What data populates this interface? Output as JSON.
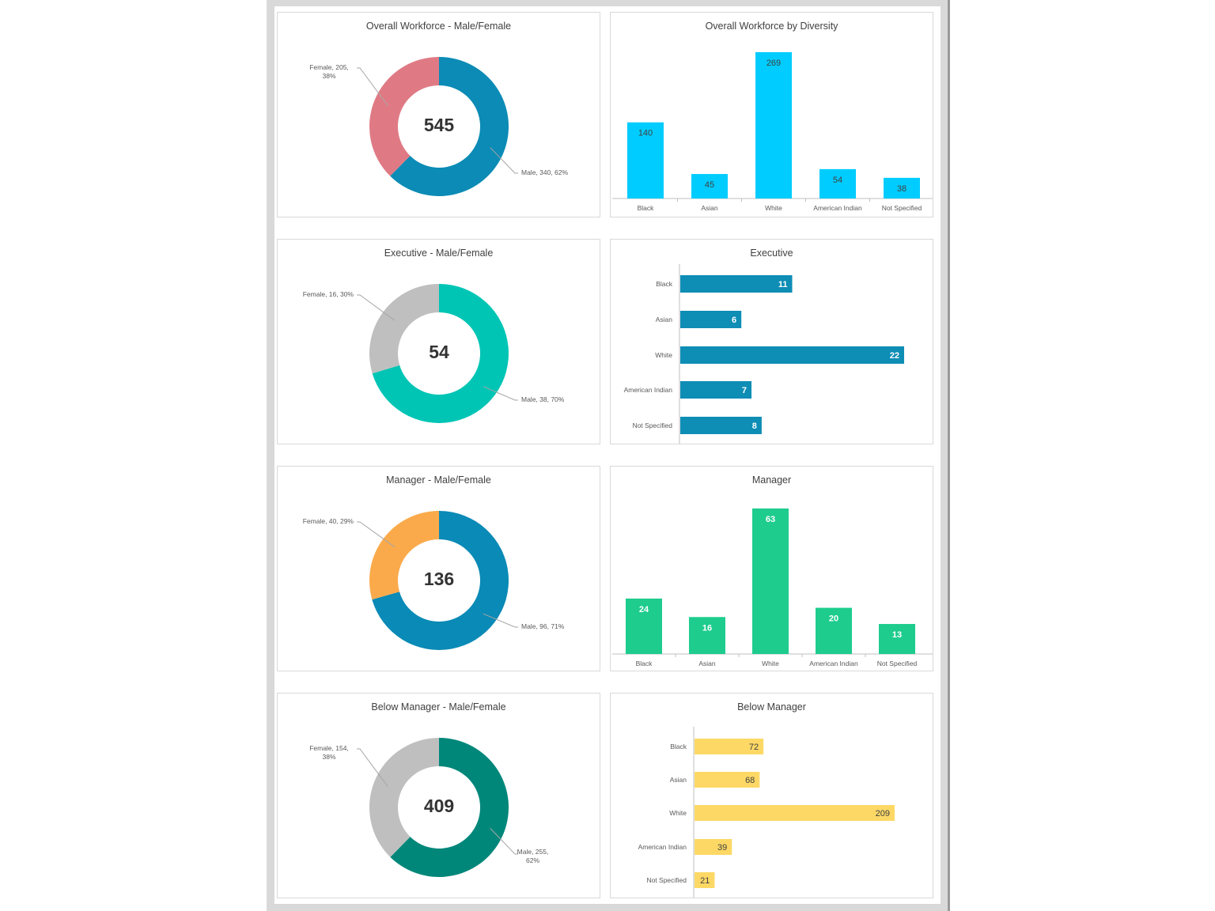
{
  "colors": {
    "frame": "#d9d9d9"
  },
  "chart_data": [
    {
      "id": "overall-gender",
      "type": "pie",
      "variant": "donut",
      "title": "Overall Workforce - Male/Female",
      "total": "545",
      "slices": [
        {
          "name": "Male",
          "value": 340,
          "percent": "62%",
          "label": "Male, 340, 62%",
          "color": "#0b8bb5"
        },
        {
          "name": "Female",
          "value": 205,
          "percent": "38%",
          "label": "Female, 205, 38%",
          "color": "#df7a85"
        }
      ]
    },
    {
      "id": "overall-diversity",
      "type": "bar",
      "orientation": "vertical",
      "title": "Overall Workforce by Diversity",
      "categories": [
        "Black",
        "Asian",
        "White",
        "American Indian",
        "Not Specified"
      ],
      "values": [
        140,
        45,
        269,
        54,
        38
      ],
      "color": "#00ccff",
      "label_color": "#404040"
    },
    {
      "id": "executive-gender",
      "type": "pie",
      "variant": "donut",
      "title": "Executive - Male/Female",
      "total": "54",
      "slices": [
        {
          "name": "Male",
          "value": 38,
          "percent": "70%",
          "label": "Male, 38, 70%",
          "color": "#00c5b5"
        },
        {
          "name": "Female",
          "value": 16,
          "percent": "30%",
          "label": "Female, 16, 30%",
          "color": "#bfbfbf"
        }
      ]
    },
    {
      "id": "executive-diversity",
      "type": "bar",
      "orientation": "horizontal",
      "title": "Executive",
      "categories": [
        "Black",
        "Asian",
        "White",
        "American Indian",
        "Not Specified"
      ],
      "values": [
        11,
        6,
        22,
        7,
        8
      ],
      "color": "#0e8db5",
      "label_color": "#ffffff"
    },
    {
      "id": "manager-gender",
      "type": "pie",
      "variant": "donut",
      "title": "Manager - Male/Female",
      "total": "136",
      "slices": [
        {
          "name": "Male",
          "value": 96,
          "percent": "71%",
          "label": "Male, 96, 71%",
          "color": "#0a8ab6"
        },
        {
          "name": "Female",
          "value": 40,
          "percent": "29%",
          "label": "Female, 40, 29%",
          "color": "#fbaa4b"
        }
      ]
    },
    {
      "id": "manager-diversity",
      "type": "bar",
      "orientation": "vertical",
      "title": "Manager",
      "categories": [
        "Black",
        "Asian",
        "White",
        "American Indian",
        "Not Specified"
      ],
      "values": [
        24,
        16,
        63,
        20,
        13
      ],
      "color": "#1ecc8e",
      "label_color": "#ffffff"
    },
    {
      "id": "below-manager-gender",
      "type": "pie",
      "variant": "donut",
      "title": "Below Manager - Male/Female",
      "total": "409",
      "slices": [
        {
          "name": "Male",
          "value": 255,
          "percent": "62%",
          "label": "Male, 255, 62%",
          "color": "#00877a"
        },
        {
          "name": "Female",
          "value": 154,
          "percent": "38%",
          "label": "Female, 154, 38%",
          "color": "#bfbfbf"
        }
      ]
    },
    {
      "id": "below-manager-diversity",
      "type": "bar",
      "orientation": "horizontal",
      "title": "Below Manager",
      "categories": [
        "Black",
        "Asian",
        "White",
        "American Indian",
        "Not Specified"
      ],
      "values": [
        72,
        68,
        209,
        39,
        21
      ],
      "color": "#fdd865",
      "label_color": "#404040"
    }
  ]
}
